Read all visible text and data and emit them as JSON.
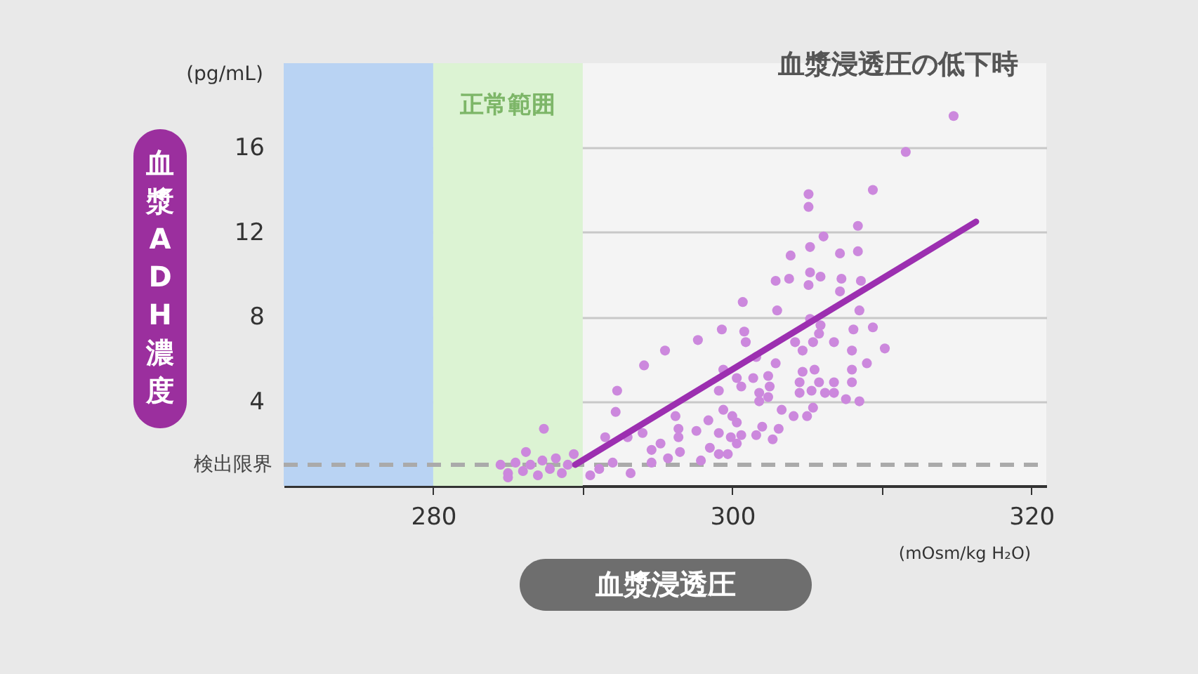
{
  "chart_data": {
    "type": "scatter",
    "title": "血漿浸透圧の低下時",
    "xlabel": "血漿浸透圧",
    "ylabel": "血漿ADH濃度",
    "annotations": [
      "(pg/mL)",
      "(mOsm/kg H₂O)"
    ],
    "xlim": [
      270,
      321
    ],
    "ylim": [
      0,
      20
    ],
    "xticks": [
      280,
      {
        "value": 290,
        "label": null
      },
      300,
      {
        "value": 310,
        "label": null
      },
      320
    ],
    "yticks": [
      4,
      8,
      12,
      16
    ],
    "grid": "y",
    "bands": [
      {
        "axis": "x",
        "from": 270,
        "to": 280,
        "label": null,
        "color": "#b9d3f3"
      },
      {
        "axis": "x",
        "from": 280,
        "to": 290,
        "label": "正常範囲",
        "color": "#dcf3d3"
      }
    ],
    "ref_lines": [
      {
        "axis": "y",
        "value": 1,
        "label": "検出限界",
        "color": "#aaaaaa",
        "line_style": "dashed"
      }
    ],
    "series": [
      {
        "color": "#cc88dd",
        "marker": "circle",
        "x": [
          284.5,
          285,
          285.5,
          286,
          286.5,
          287,
          287.3,
          287.8,
          288.2,
          288.6,
          289,
          289.4,
          286.2,
          287.4,
          285,
          292.3,
          292.2,
          294.1,
          295.5,
          297.7,
          291.5,
          293,
          294,
          294.6,
          295.2,
          296.2,
          296.4,
          296.4,
          296.5,
          297.6,
          298.4,
          298.5,
          299.1,
          299.4,
          300,
          299.9,
          299.1,
          299.4,
          292,
          291.1,
          290.5,
          293.2,
          294.6,
          295.7,
          297.9,
          299.1,
          314.8,
          311.6,
          309.4,
          305.1,
          305.1,
          308.4,
          306.1,
          305.2,
          307.2,
          308.4,
          303.9,
          305.2,
          305.9,
          302.9,
          303.8,
          305.1,
          307.3,
          307.2,
          308.6,
          300.7,
          303,
          308.5,
          305.2,
          305.9,
          305.8,
          308.1,
          309.4,
          299.3,
          300.8,
          300.9,
          304.2,
          305.4,
          306.8,
          310.2,
          304.7,
          308,
          309,
          302.9,
          301.6,
          300.3,
          300.6,
          301.4,
          302.4,
          302.5,
          301.8,
          301.8,
          302.4,
          304.7,
          305.5,
          304.5,
          305.8,
          304.5,
          305.3,
          306.2,
          306.8,
          306.8,
          308,
          308,
          307.6,
          308.5,
          305.4,
          305,
          304.1,
          303.3,
          300.3,
          300.6,
          300.3,
          302,
          301.6,
          302.7,
          303.1,
          299.7
        ],
        "values": [
          1.0,
          0.6,
          1.1,
          0.7,
          1.0,
          0.5,
          1.2,
          0.8,
          1.3,
          0.6,
          1.0,
          1.5,
          1.6,
          2.7,
          0.4,
          4.5,
          3.5,
          5.7,
          6.4,
          6.9,
          2.3,
          2.3,
          2.5,
          1.7,
          2.0,
          3.3,
          2.7,
          2.3,
          1.6,
          2.6,
          3.1,
          1.8,
          2.5,
          3.6,
          3.3,
          2.3,
          4.5,
          5.5,
          1.1,
          0.8,
          0.5,
          0.6,
          1.1,
          1.3,
          1.2,
          1.5,
          17.5,
          15.8,
          14.0,
          13.8,
          13.2,
          12.3,
          11.8,
          11.3,
          11.0,
          11.1,
          10.9,
          10.1,
          9.9,
          9.7,
          9.8,
          9.5,
          9.8,
          9.2,
          9.7,
          8.7,
          8.3,
          8.3,
          7.9,
          7.6,
          7.2,
          7.4,
          7.5,
          7.4,
          7.3,
          6.8,
          6.8,
          6.8,
          6.8,
          6.5,
          6.4,
          6.4,
          5.8,
          5.8,
          6.1,
          5.1,
          4.7,
          5.1,
          5.2,
          4.7,
          4.4,
          4.0,
          4.2,
          5.4,
          5.5,
          4.9,
          4.9,
          4.4,
          4.5,
          4.4,
          4.9,
          4.4,
          5.5,
          4.9,
          4.1,
          4.0,
          3.7,
          3.3,
          3.3,
          3.6,
          3.0,
          2.4,
          2.0,
          2.8,
          2.4,
          2.2,
          2.7,
          1.5
        ]
      },
      {
        "type": "line",
        "color": "#9c2fb0",
        "x": [
          289.5,
          316.3
        ],
        "values": [
          1.0,
          12.5
        ]
      }
    ]
  }
}
